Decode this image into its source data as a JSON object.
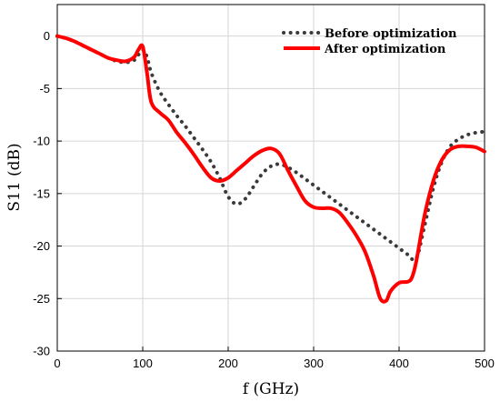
{
  "chart_data": {
    "type": "line",
    "title": "",
    "xlabel": "f (GHz)",
    "ylabel": "S11 (dB)",
    "xlim": [
      0,
      500
    ],
    "ylim": [
      -30,
      3
    ],
    "xticks": [
      0,
      100,
      200,
      300,
      400,
      500
    ],
    "yticks": [
      0,
      -5,
      -10,
      -15,
      -20,
      -25,
      -30
    ],
    "xtick_labels": [
      "0",
      "100",
      "200",
      "300",
      "400",
      "500"
    ],
    "ytick_labels": [
      "0",
      "-5",
      "-10",
      "-15",
      "-20",
      "-25",
      "-30"
    ],
    "grid": true,
    "legend_position": "top-right",
    "series": [
      {
        "name": "Before optimization",
        "color": "#3a3a3a",
        "style": "dotted",
        "x": [
          0,
          10,
          20,
          30,
          40,
          50,
          60,
          70,
          80,
          90,
          100,
          105,
          110,
          120,
          130,
          140,
          150,
          160,
          170,
          180,
          190,
          200,
          210,
          220,
          230,
          240,
          250,
          260,
          270,
          280,
          290,
          300,
          310,
          320,
          330,
          340,
          350,
          360,
          370,
          380,
          390,
          400,
          410,
          420,
          430,
          440,
          450,
          460,
          470,
          480,
          490,
          500
        ],
        "y": [
          0,
          -0.2,
          -0.5,
          -0.9,
          -1.3,
          -1.7,
          -2.1,
          -2.4,
          -2.5,
          -2.3,
          -1.3,
          -2.0,
          -3.5,
          -5.3,
          -6.5,
          -7.6,
          -8.6,
          -9.7,
          -10.8,
          -12.0,
          -13.5,
          -15.3,
          -16.0,
          -15.5,
          -14.3,
          -13.1,
          -12.4,
          -12.2,
          -12.5,
          -13.0,
          -13.6,
          -14.2,
          -14.8,
          -15.4,
          -16.0,
          -16.6,
          -17.2,
          -17.8,
          -18.4,
          -19.0,
          -19.6,
          -20.2,
          -20.8,
          -21.2,
          -18.0,
          -14.5,
          -12.0,
          -10.5,
          -9.8,
          -9.4,
          -9.2,
          -9.1
        ]
      },
      {
        "name": "After optimization",
        "color": "#ff0000",
        "style": "solid",
        "x": [
          0,
          10,
          20,
          30,
          40,
          50,
          60,
          70,
          80,
          90,
          95,
          100,
          105,
          110,
          120,
          130,
          140,
          150,
          160,
          170,
          180,
          190,
          200,
          210,
          220,
          230,
          240,
          250,
          260,
          270,
          280,
          290,
          300,
          310,
          320,
          330,
          340,
          350,
          360,
          370,
          378,
          385,
          390,
          400,
          410,
          415,
          420,
          430,
          440,
          450,
          460,
          470,
          480,
          490,
          500
        ],
        "y": [
          0,
          -0.2,
          -0.5,
          -0.9,
          -1.3,
          -1.7,
          -2.1,
          -2.3,
          -2.4,
          -2.0,
          -1.3,
          -1.0,
          -3.5,
          -6.3,
          -7.3,
          -8.0,
          -9.2,
          -10.2,
          -11.3,
          -12.5,
          -13.5,
          -13.8,
          -13.5,
          -12.8,
          -12.1,
          -11.4,
          -10.9,
          -10.7,
          -11.2,
          -12.8,
          -14.3,
          -15.7,
          -16.3,
          -16.4,
          -16.4,
          -16.8,
          -17.8,
          -19.0,
          -20.5,
          -22.8,
          -25.0,
          -25.2,
          -24.3,
          -23.5,
          -23.4,
          -23.0,
          -21.5,
          -17.0,
          -13.8,
          -11.8,
          -10.8,
          -10.5,
          -10.5,
          -10.6,
          -11.0
        ]
      }
    ]
  }
}
